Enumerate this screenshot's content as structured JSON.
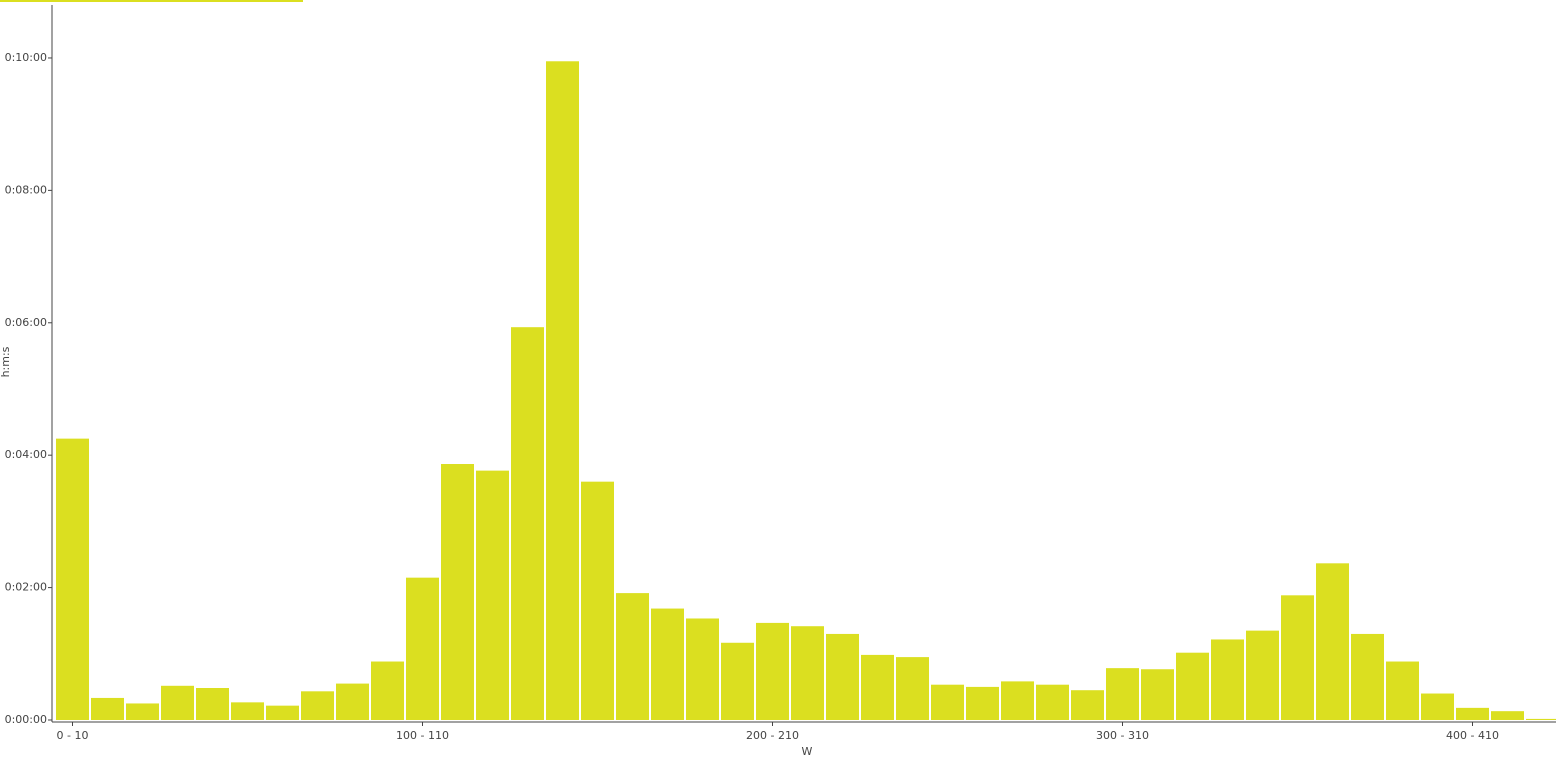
{
  "chart_data": {
    "type": "bar",
    "x_label": "W",
    "y_label": "h:m:s",
    "color": "#dbdf20",
    "categories": [
      "0 - 10",
      null,
      null,
      null,
      null,
      null,
      null,
      null,
      null,
      null,
      "100 - 110",
      null,
      null,
      null,
      null,
      null,
      null,
      null,
      null,
      null,
      "200 - 210",
      null,
      null,
      null,
      null,
      null,
      null,
      null,
      null,
      null,
      "300 - 310",
      null,
      null,
      null,
      null,
      null,
      null,
      null,
      null,
      null,
      "400 - 410",
      null,
      null
    ],
    "values": [
      255,
      20,
      15,
      31,
      29,
      16,
      13,
      26,
      33,
      53,
      129,
      232,
      226,
      356,
      597,
      216,
      115,
      101,
      92,
      70,
      88,
      85,
      78,
      59,
      57,
      32,
      30,
      35,
      32,
      27,
      47,
      46,
      61,
      73,
      81,
      113,
      142,
      78,
      53,
      24,
      11,
      8,
      1
    ],
    "ylim": [
      0,
      648
    ],
    "yticks": [
      {
        "value": 0,
        "label": "0:00:00"
      },
      {
        "value": 120,
        "label": "0:02:00"
      },
      {
        "value": 240,
        "label": "0:04:00"
      },
      {
        "value": 360,
        "label": "0:06:00"
      },
      {
        "value": 480,
        "label": "0:08:00"
      },
      {
        "value": 600,
        "label": "0:10:00"
      }
    ]
  }
}
